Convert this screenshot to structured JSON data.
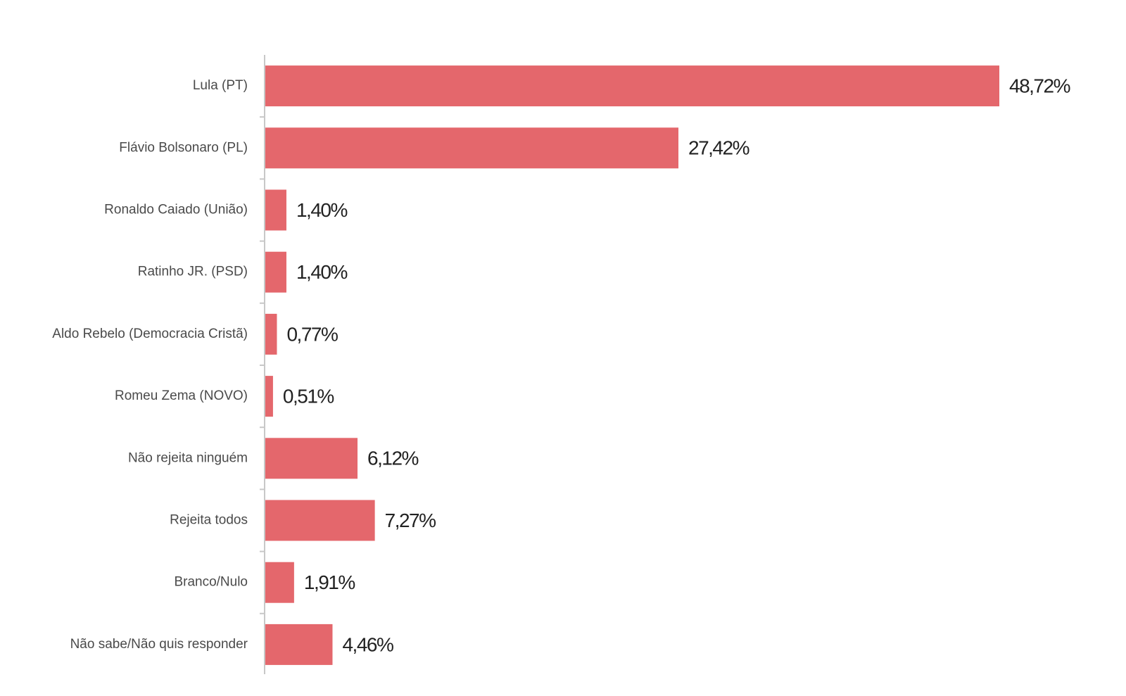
{
  "chart_data": {
    "type": "bar",
    "orientation": "horizontal",
    "categories": [
      "Lula (PT)",
      "Flávio Bolsonaro (PL)",
      "Ronaldo Caiado (União)",
      "Ratinho JR. (PSD)",
      "Aldo Rebelo (Democracia Cristã)",
      "Romeu Zema (NOVO)",
      "Não rejeita ninguém",
      "Rejeita todos",
      "Branco/Nulo",
      "Não sabe/Não quis responder"
    ],
    "values": [
      48.72,
      27.42,
      1.4,
      1.4,
      0.77,
      0.51,
      6.12,
      7.27,
      1.91,
      4.46
    ],
    "value_labels": [
      "48,72%",
      "27,42%",
      "1,40%",
      "1,40%",
      "0,77%",
      "0,51%",
      "6,12%",
      "7,27%",
      "1,91%",
      "4,46%"
    ],
    "color": "#e4676c"
  }
}
